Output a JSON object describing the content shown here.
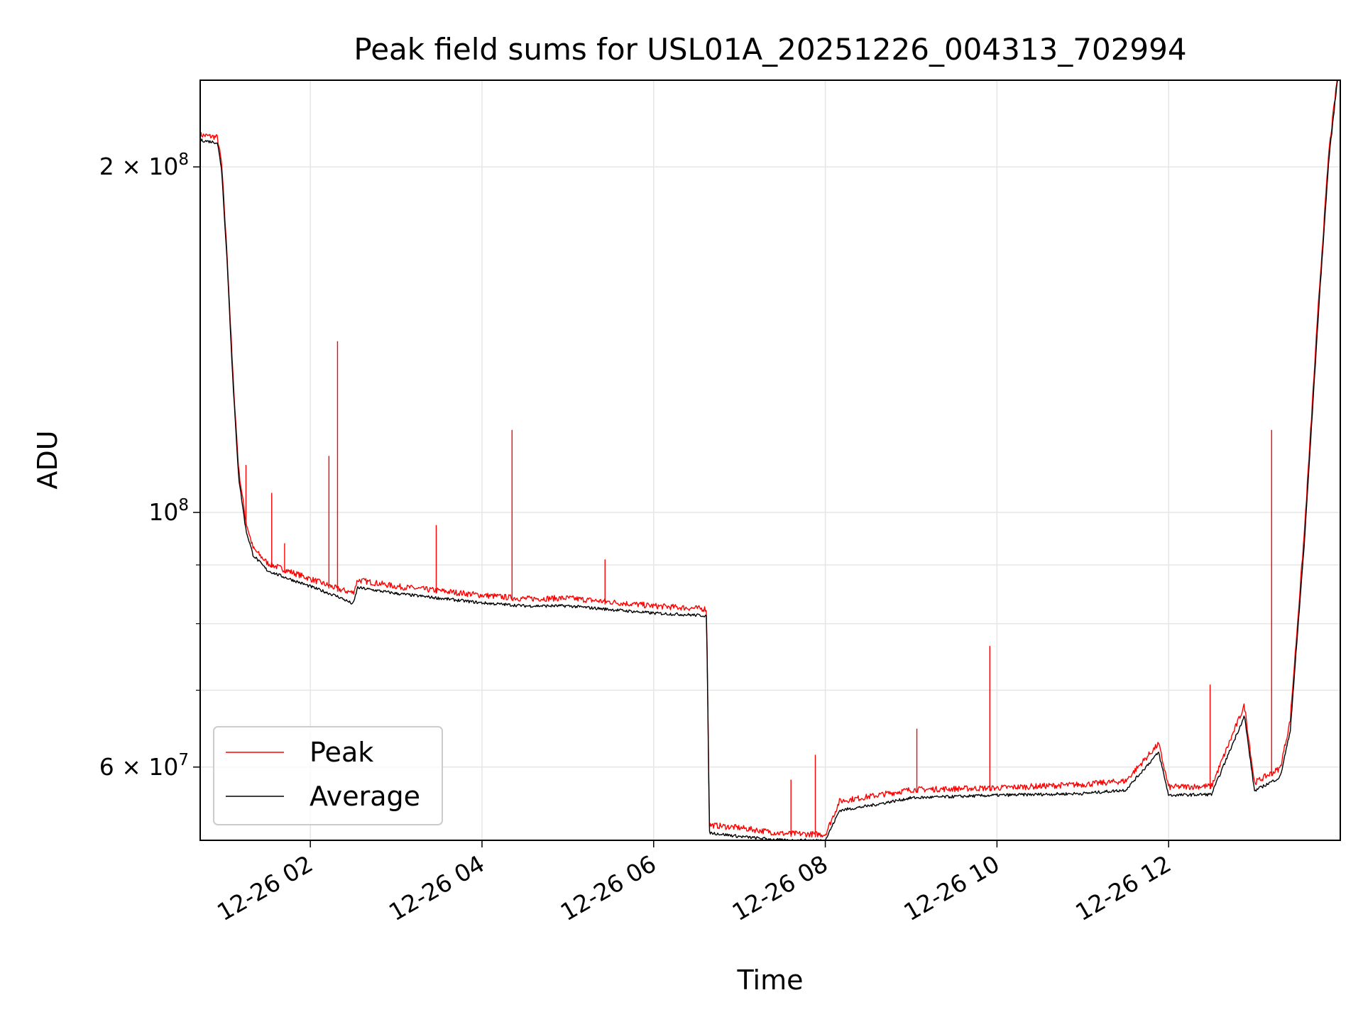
{
  "chart_data": {
    "type": "line",
    "title": "Peak field sums for USL01A_20251226_004313_702994",
    "xlabel": "Time",
    "ylabel": "ADU",
    "yscale": "log",
    "grid": true,
    "legend_placement": "lower-left",
    "x_range": [
      "2025-12-26 00:43",
      "2025-12-26 14:00"
    ],
    "y_range": [
      51800000,
      238000000
    ],
    "x_ticks": [
      {
        "value": "2025-12-26 02:00",
        "label": "12-26 02"
      },
      {
        "value": "2025-12-26 04:00",
        "label": "12-26 04"
      },
      {
        "value": "2025-12-26 06:00",
        "label": "12-26 06"
      },
      {
        "value": "2025-12-26 08:00",
        "label": "12-26 08"
      },
      {
        "value": "2025-12-26 10:00",
        "label": "12-26 10"
      },
      {
        "value": "2025-12-26 12:00",
        "label": "12-26 12"
      }
    ],
    "y_major_ticks": [
      {
        "value": 60000000,
        "base": "6 × 10",
        "exp": "7"
      },
      {
        "value": 100000000,
        "base": "10",
        "exp": "8"
      },
      {
        "value": 200000000,
        "base": "2 × 10",
        "exp": "8"
      }
    ],
    "y_minor_ticks": [
      70000000,
      80000000,
      90000000
    ],
    "series": [
      {
        "name": "Peak",
        "color": "#ff0000",
        "x": [
          "2025-12-26 00:43",
          "2025-12-26 00:55",
          "2025-12-26 00:58",
          "2025-12-26 01:02",
          "2025-12-26 01:06",
          "2025-12-26 01:10",
          "2025-12-26 01:15",
          "2025-12-26 01:20",
          "2025-12-26 01:30",
          "2025-12-26 01:40",
          "2025-12-26 02:00",
          "2025-12-26 02:20",
          "2025-12-26 02:30",
          "2025-12-26 02:33",
          "2025-12-26 03:00",
          "2025-12-26 04:00",
          "2025-12-26 04:30",
          "2025-12-26 05:00",
          "2025-12-26 06:00",
          "2025-12-26 06:37",
          "2025-12-26 06:39",
          "2025-12-26 07:00",
          "2025-12-26 07:30",
          "2025-12-26 08:00",
          "2025-12-26 08:10",
          "2025-12-26 08:30",
          "2025-12-26 09:00",
          "2025-12-26 10:00",
          "2025-12-26 11:00",
          "2025-12-26 11:30",
          "2025-12-26 11:53",
          "2025-12-26 12:00",
          "2025-12-26 12:30",
          "2025-12-26 12:53",
          "2025-12-26 13:00",
          "2025-12-26 13:18",
          "2025-12-26 13:25",
          "2025-12-26 13:35",
          "2025-12-26 13:45",
          "2025-12-26 13:52",
          "2025-12-26 13:58"
        ],
        "values": [
          212000000,
          211000000,
          200000000,
          165000000,
          130000000,
          108000000,
          97500000,
          92500000,
          89800000,
          88800000,
          87000000,
          85200000,
          84600000,
          86800000,
          85700000,
          84200000,
          83600000,
          83700000,
          82400000,
          81900000,
          53100000,
          52800000,
          52200000,
          52100000,
          55700000,
          56200000,
          57000000,
          57200000,
          57600000,
          58000000,
          62500000,
          57300000,
          57400000,
          67500000,
          57800000,
          59500000,
          65500000,
          96000000,
          153000000,
          205000000,
          238000000
        ],
        "spikes": [
          {
            "x": "2025-12-26 01:15",
            "y": 110000000
          },
          {
            "x": "2025-12-26 01:33",
            "y": 104000000
          },
          {
            "x": "2025-12-26 01:42",
            "y": 94000000
          },
          {
            "x": "2025-12-26 02:13",
            "y": 112000000
          },
          {
            "x": "2025-12-26 02:19",
            "y": 141000000
          },
          {
            "x": "2025-12-26 03:28",
            "y": 97500000
          },
          {
            "x": "2025-12-26 04:21",
            "y": 118000000
          },
          {
            "x": "2025-12-26 05:26",
            "y": 91000000
          },
          {
            "x": "2025-12-26 07:36",
            "y": 58500000
          },
          {
            "x": "2025-12-26 07:53",
            "y": 61500000
          },
          {
            "x": "2025-12-26 09:04",
            "y": 64800000
          },
          {
            "x": "2025-12-26 09:55",
            "y": 76500000
          },
          {
            "x": "2025-12-26 12:29",
            "y": 70800000
          },
          {
            "x": "2025-12-26 13:12",
            "y": 118000000
          }
        ]
      },
      {
        "name": "Average",
        "color": "#000000",
        "x": [
          "2025-12-26 00:43",
          "2025-12-26 00:55",
          "2025-12-26 00:58",
          "2025-12-26 01:02",
          "2025-12-26 01:06",
          "2025-12-26 01:10",
          "2025-12-26 01:15",
          "2025-12-26 01:20",
          "2025-12-26 01:30",
          "2025-12-26 01:40",
          "2025-12-26 02:00",
          "2025-12-26 02:20",
          "2025-12-26 02:30",
          "2025-12-26 02:33",
          "2025-12-26 03:00",
          "2025-12-26 04:00",
          "2025-12-26 04:30",
          "2025-12-26 05:00",
          "2025-12-26 06:00",
          "2025-12-26 06:37",
          "2025-12-26 06:39",
          "2025-12-26 07:00",
          "2025-12-26 07:30",
          "2025-12-26 08:00",
          "2025-12-26 08:10",
          "2025-12-26 08:30",
          "2025-12-26 09:00",
          "2025-12-26 10:00",
          "2025-12-26 11:00",
          "2025-12-26 11:30",
          "2025-12-26 11:53",
          "2025-12-26 12:00",
          "2025-12-26 12:30",
          "2025-12-26 12:53",
          "2025-12-26 13:00",
          "2025-12-26 13:18",
          "2025-12-26 13:25",
          "2025-12-26 13:35",
          "2025-12-26 13:45",
          "2025-12-26 13:52",
          "2025-12-26 13:58"
        ],
        "values": [
          211000000,
          210000000,
          199000000,
          164000000,
          129000000,
          107000000,
          96500000,
          91800000,
          89000000,
          88000000,
          86200000,
          84400000,
          83200000,
          86000000,
          85000000,
          83400000,
          82900000,
          82900000,
          81700000,
          81300000,
          52600000,
          52200000,
          51800000,
          51800000,
          55000000,
          55500000,
          56400000,
          56700000,
          56900000,
          57300000,
          61800000,
          56700000,
          56800000,
          66500000,
          57200000,
          58800000,
          64500000,
          94500000,
          151000000,
          203000000,
          238000000
        ]
      }
    ]
  }
}
